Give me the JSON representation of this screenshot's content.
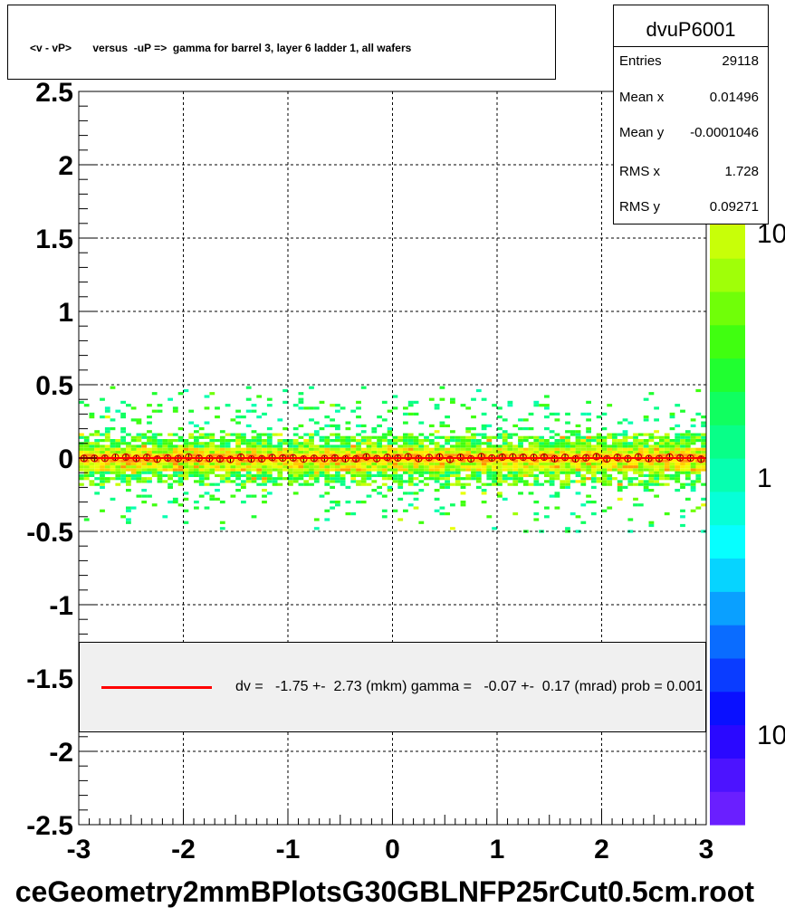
{
  "chart_data": {
    "type": "heatmap",
    "title": "<v - vP>       versus  -uP =>  gamma for barrel 3, layer 6 ladder 1, all wafers",
    "xlabel": "",
    "ylabel": "",
    "xlim": [
      -3,
      3
    ],
    "ylim": [
      -2.5,
      2.5
    ],
    "grid": true,
    "x_ticks": [
      "-3",
      "-2",
      "-1",
      "0",
      "1",
      "2",
      "3"
    ],
    "y_ticks": [
      "2.5",
      "2",
      "1.5",
      "1",
      "0.5",
      "0",
      "-0.5",
      "-1",
      "-1.5",
      "-2",
      "-2.5"
    ],
    "z_scale": "log",
    "z_ticks": [
      "10",
      "1",
      "10"
    ],
    "density_band": {
      "center": 0.0,
      "core_halfwidth": 0.08,
      "outer_halfwidth": 0.5
    },
    "profile_points_y": 0.0,
    "fit_line": {
      "y": 0.0,
      "color": "#ff0000"
    },
    "legend": {
      "position": "bottom",
      "line_color": "#ff0000",
      "text": "dv =   -1.75 +-  2.73 (mkm) gamma =   -0.07 +-  0.17 (mrad) prob = 0.001"
    },
    "stats": {
      "name": "dvuP6001",
      "rows": [
        {
          "label": "Entries",
          "value": "29118"
        },
        {
          "label": "Mean x",
          "value": "0.01496"
        },
        {
          "label": "Mean y",
          "value": "-0.0001046"
        },
        {
          "label": "RMS x",
          "value": "1.728"
        },
        {
          "label": "RMS y",
          "value": "0.09271"
        }
      ]
    },
    "palette": [
      "#6a1fff",
      "#4c13ff",
      "#2a08ff",
      "#0a10ff",
      "#0a3cff",
      "#0a6cff",
      "#0aa0ff",
      "#06d4ff",
      "#06ffff",
      "#06ffd8",
      "#06ffb0",
      "#08ff88",
      "#10ff60",
      "#20ff30",
      "#40ff10",
      "#70ff08",
      "#a0ff08",
      "#c8ff08",
      "#e8ff08",
      "#ffee00",
      "#ffcc00",
      "#ff9900"
    ]
  },
  "footer": "ceGeometry2mmBPlotsG30GBLNFP25rCut0.5cm.root"
}
